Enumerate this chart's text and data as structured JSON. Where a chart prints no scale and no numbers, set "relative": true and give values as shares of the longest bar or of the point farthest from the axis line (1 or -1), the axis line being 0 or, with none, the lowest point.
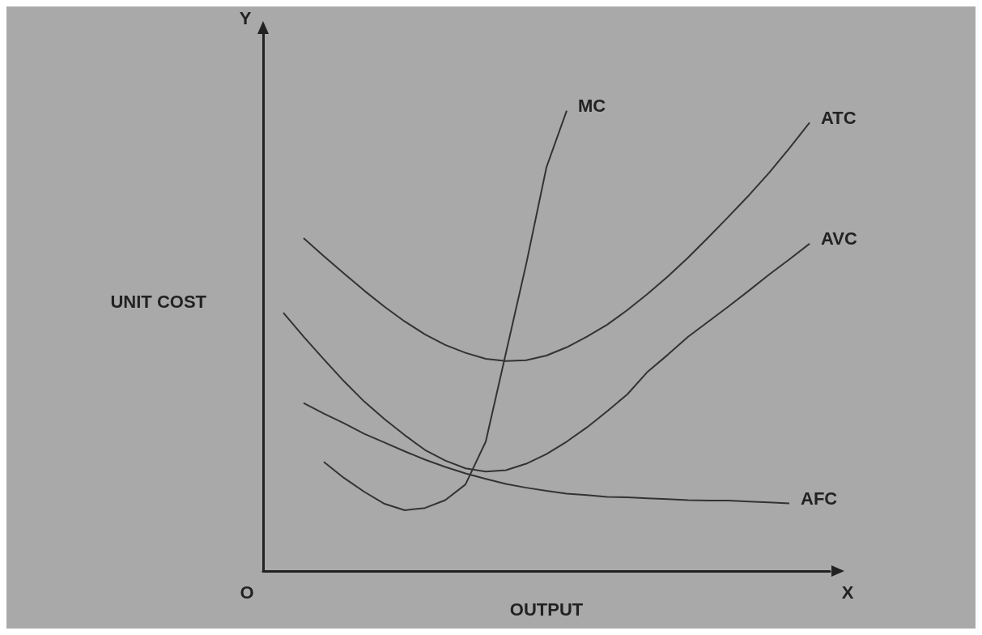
{
  "chart_data": {
    "type": "line",
    "relative": true,
    "xlabel": "OUTPUT",
    "ylabel": "UNIT COST",
    "annotations": [
      "Y",
      "X",
      "O"
    ],
    "marker": "none",
    "categories": [
      null,
      null,
      null,
      null,
      null,
      null,
      null,
      null,
      null,
      null,
      null,
      null,
      null,
      null,
      null,
      null,
      null,
      null,
      null,
      null,
      null,
      null,
      null,
      null,
      null,
      null,
      null,
      null,
      null
    ],
    "series": [
      {
        "name": "MC",
        "color": "#333333",
        "values": [
          null,
          null,
          null,
          0.237,
          0.202,
          0.172,
          0.146,
          0.132,
          0.137,
          0.154,
          0.188,
          0.281,
          0.474,
          0.667,
          0.877,
          1,
          null,
          null,
          null,
          null,
          null,
          null,
          null,
          null,
          null,
          null,
          null,
          null,
          null
        ]
      },
      {
        "name": "ATC",
        "color": "#333333",
        "values": [
          null,
          null,
          0.723,
          0.684,
          0.646,
          0.609,
          0.574,
          0.542,
          0.514,
          0.491,
          0.474,
          0.461,
          0.456,
          0.458,
          0.468,
          0.486,
          0.509,
          0.535,
          0.567,
          0.602,
          0.64,
          0.681,
          0.725,
          0.77,
          0.816,
          0.865,
          0.918,
          0.974,
          null
        ]
      },
      {
        "name": "AVC",
        "color": "#333333",
        "values": [
          null,
          0.561,
          0.509,
          0.46,
          0.412,
          0.368,
          0.33,
          0.295,
          0.263,
          0.24,
          0.223,
          0.216,
          0.219,
          0.233,
          0.254,
          0.281,
          0.312,
          0.347,
          0.384,
          0.433,
          0.47,
          0.509,
          0.542,
          0.575,
          0.609,
          0.644,
          0.677,
          0.711,
          null
        ]
      },
      {
        "name": "AFC",
        "color": "#333333",
        "values": [
          null,
          null,
          0.365,
          0.342,
          0.321,
          0.298,
          0.279,
          0.26,
          0.242,
          0.226,
          0.212,
          0.2,
          0.189,
          0.181,
          0.174,
          0.168,
          0.165,
          0.161,
          0.16,
          0.158,
          0.156,
          0.154,
          0.153,
          0.153,
          0.151,
          0.149,
          0.147,
          null,
          null
        ]
      }
    ]
  }
}
